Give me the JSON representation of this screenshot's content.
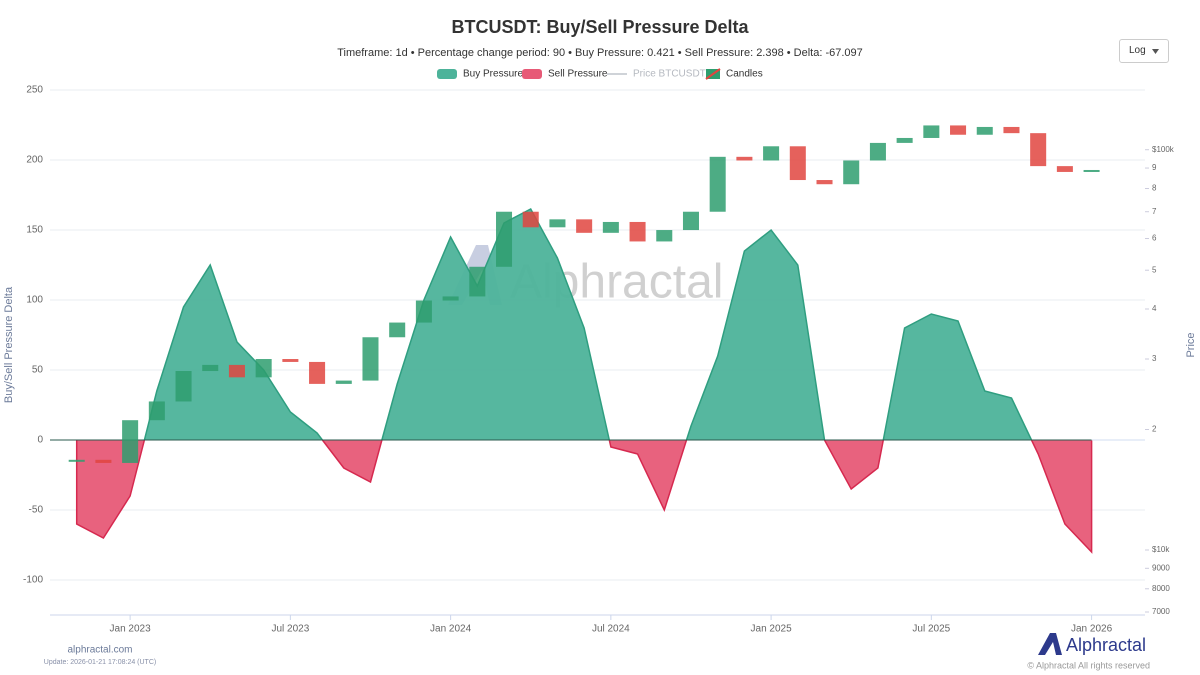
{
  "chart_data": {
    "type": "area",
    "title": "BTCUSDT: Buy/Sell Pressure Delta",
    "subtitle": "Timeframe: 1d  •  Percentage change period: 90  •  Buy Pressure: 0.421 • Sell Pressure: 2.398 • Delta: -67.097",
    "scale_selector": "Log",
    "ylabel": "Buy/Sell Pressure Delta",
    "y2label": "Price",
    "x": [
      "2022-11",
      "2022-12",
      "2023-01",
      "2023-02",
      "2023-03",
      "2023-04",
      "2023-05",
      "2023-06",
      "2023-07",
      "2023-08",
      "2023-09",
      "2023-10",
      "2023-11",
      "2023-12",
      "2024-01",
      "2024-02",
      "2024-03",
      "2024-04",
      "2024-05",
      "2024-06",
      "2024-07",
      "2024-08",
      "2024-09",
      "2024-10",
      "2024-11",
      "2024-12",
      "2025-01",
      "2025-02",
      "2025-03",
      "2025-04",
      "2025-05",
      "2025-06",
      "2025-07",
      "2025-08",
      "2025-09",
      "2025-10",
      "2025-11",
      "2025-12",
      "2026-01"
    ],
    "xlim": [
      "2022-10",
      "2026-03"
    ],
    "xticks": [
      {
        "value": "2023-01",
        "label": "Jan 2023"
      },
      {
        "value": "2023-07",
        "label": "Jul 2023"
      },
      {
        "value": "2024-01",
        "label": "Jan 2024"
      },
      {
        "value": "2024-07",
        "label": "Jul 2024"
      },
      {
        "value": "2025-01",
        "label": "Jan 2025"
      },
      {
        "value": "2025-07",
        "label": "Jul 2025"
      },
      {
        "value": "2026-01",
        "label": "Jan 2026"
      }
    ],
    "ylim": [
      -125,
      250
    ],
    "yticks": [
      -100,
      -50,
      0,
      50,
      100,
      150,
      200,
      250
    ],
    "y2lim": [
      6880,
      141000
    ],
    "y2log": true,
    "y2ticks": [
      7000,
      8000,
      9000,
      {
        "value": 10000,
        "label": "$10k"
      },
      {
        "value": 20000,
        "label": "2"
      },
      {
        "value": 30000,
        "label": "3"
      },
      {
        "value": 40000,
        "label": "4"
      },
      {
        "value": 50000,
        "label": "5"
      },
      {
        "value": 60000,
        "label": "6"
      },
      {
        "value": 70000,
        "label": "7"
      },
      {
        "value": 80000,
        "label": "8"
      },
      {
        "value": 90000,
        "label": "9"
      },
      {
        "value": 100000,
        "label": "$100k"
      }
    ],
    "y2tick_labels_short": [
      {
        "value": 7000,
        "label": "7"
      },
      {
        "value": 8000,
        "label": "8"
      },
      {
        "value": 9000,
        "label": "9"
      }
    ],
    "grid": true,
    "series": [
      {
        "name": "Buy Pressure",
        "color": "#2f9e80",
        "fill": "#4db39a",
        "values": [
          null,
          null,
          null,
          35,
          95,
          125,
          70,
          50,
          20,
          5,
          null,
          null,
          40,
          100,
          145,
          110,
          155,
          165,
          130,
          80,
          null,
          null,
          null,
          10,
          60,
          135,
          150,
          125,
          0,
          null,
          null,
          80,
          90,
          85,
          35,
          30,
          null,
          null,
          null
        ]
      },
      {
        "name": "Sell Pressure",
        "color": "#d6294f",
        "fill": "#e75a77",
        "values": [
          -60,
          -70,
          -40,
          null,
          null,
          null,
          null,
          null,
          null,
          null,
          -20,
          -30,
          null,
          null,
          null,
          null,
          null,
          null,
          null,
          null,
          -5,
          -10,
          -50,
          null,
          null,
          null,
          null,
          null,
          null,
          -35,
          -20,
          null,
          null,
          null,
          null,
          null,
          -10,
          -60,
          -80
        ]
      },
      {
        "name": "Price BTCUSDT",
        "color": "#cfd3d8",
        "hidden": true
      },
      {
        "name": "Candles",
        "axis": "y2",
        "color": "#2e9e6e",
        "down_color": "#e0453f",
        "values": [
          16800,
          16500,
          21100,
          23500,
          28000,
          29000,
          27000,
          30000,
          29500,
          26000,
          26500,
          34000,
          37000,
          42000,
          43000,
          51000,
          70000,
          64000,
          67000,
          62000,
          66000,
          59000,
          63000,
          70000,
          96000,
          94000,
          102000,
          84000,
          82000,
          94000,
          104000,
          107000,
          115000,
          109000,
          114000,
          110000,
          91000,
          88000,
          89000
        ]
      }
    ]
  },
  "page": {
    "watermark": "Alphractal",
    "site": "alphractal.com",
    "update": "Update: 2026-01-21 17:08:24 (UTC)",
    "brand": "Alphractal",
    "copyright": "© Alphractal All rights reserved"
  }
}
